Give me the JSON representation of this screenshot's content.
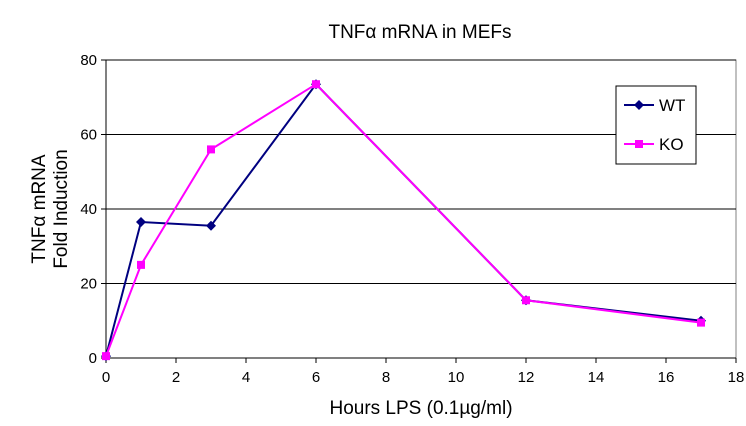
{
  "chart_data": {
    "type": "line",
    "title": "TNFα mRNA in MEFs",
    "xlabel": "Hours LPS (0.1µg/ml)",
    "ylabel": [
      "TNFα mRNA",
      "Fold Induction"
    ],
    "xlim": [
      0,
      18
    ],
    "ylim": [
      0,
      80
    ],
    "xticks": [
      0,
      2,
      4,
      6,
      8,
      10,
      12,
      14,
      16,
      18
    ],
    "yticks": [
      0,
      20,
      40,
      60,
      80
    ],
    "grid": "horizontal",
    "legend_position": "top-right",
    "series": [
      {
        "name": "WT",
        "color": "#000080",
        "marker": "diamond",
        "x": [
          0,
          1,
          3,
          6,
          12,
          17
        ],
        "y": [
          0.5,
          36.5,
          35.5,
          73.5,
          15.5,
          10
        ]
      },
      {
        "name": "KO",
        "color": "#ff00ff",
        "marker": "square",
        "x": [
          0,
          1,
          3,
          6,
          12,
          17
        ],
        "y": [
          0.5,
          25,
          56,
          73.5,
          15.5,
          9.5
        ]
      }
    ]
  }
}
